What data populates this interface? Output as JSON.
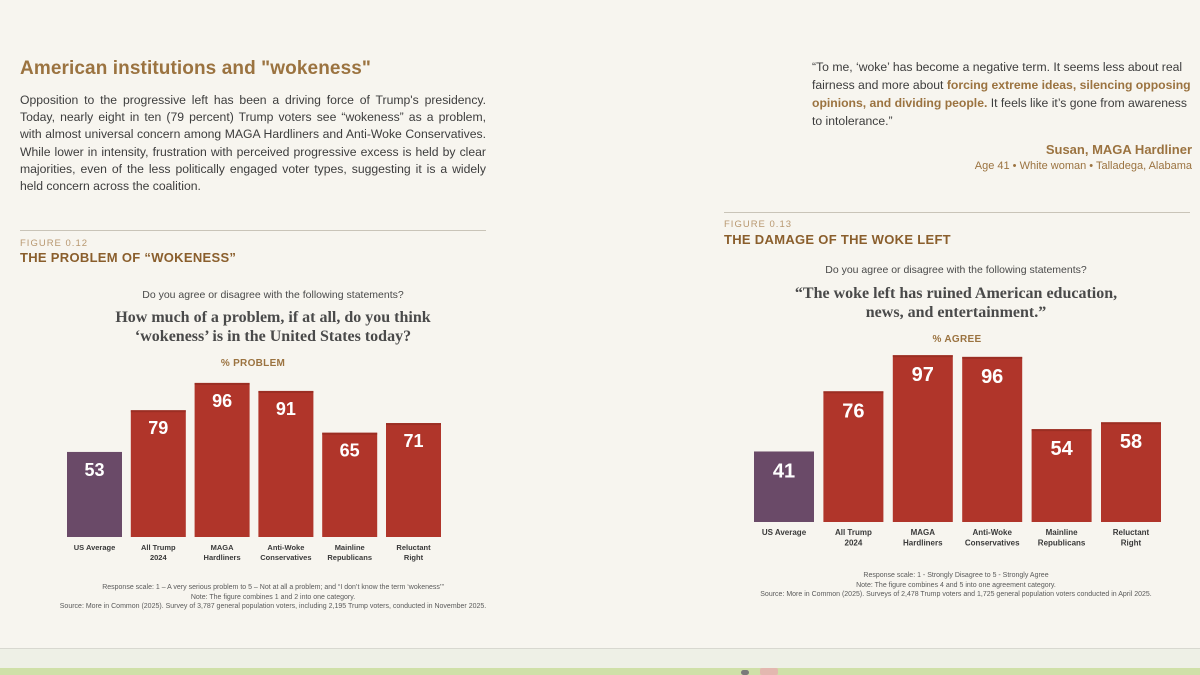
{
  "header": {
    "section_title": "American institutions and \"wokeness\"",
    "intro": "Opposition to the progressive left has been a driving force of Trump's presidency. Today, nearly eight in ten (79 percent) Trump voters see “wokeness” as a problem, with almost universal concern among MAGA Hardliners and Anti-Woke Conservatives. While lower in intensity, frustration with perceived progressive excess is held by clear majorities, even of the less politically engaged voter types, suggesting it is a widely held concern across the coalition."
  },
  "quote": {
    "part1": "“To me, ‘woke’ has become a negative term. It seems less about real fairness and more about ",
    "highlight": "forcing extreme ideas, silencing opposing opinions, and dividing people.",
    "part2": " It feels like it’s gone from awareness to intolerance.”",
    "author": "Susan, MAGA Hardliner",
    "meta": "Age 41 • White woman • Talladega, Alabama"
  },
  "fig1": {
    "label": "FIGURE 0.12",
    "title": "THE PROBLEM OF “WOKENESS”",
    "question": "Do you agree or disagree with the following statements?",
    "statement_line1": "How much of a problem, if at all, do you think",
    "statement_line2": "‘wokeness’ is in the United States today?",
    "metric": "% PROBLEM",
    "note1": "Response scale: 1 – A very serious problem to 5 – Not at all a problem; and “I don’t know the term ‘wokeness’”",
    "note2": "Note: The figure combines 1 and 2 into one category.",
    "note3": "Source: More in Common (2025). Survey of 3,787 general population voters, including 2,195 Trump voters, conducted in November 2025."
  },
  "fig2": {
    "label": "FIGURE 0.13",
    "title": "THE DAMAGE OF THE WOKE LEFT",
    "question": "Do you agree or disagree with the following statements?",
    "statement_line1": "“The woke left has ruined American education,",
    "statement_line2": "news, and entertainment.”",
    "metric": "% AGREE",
    "note1": "Response scale: 1 - Strongly Disagree to 5 - Strongly Agree",
    "note2": "Note: The figure combines 4 and 5 into one agreement category.",
    "note3": "Source: More in Common (2025). Surveys of 2,478 Trump voters and 1,725 general population voters conducted in April 2025."
  },
  "colors": {
    "us_average": "#6a4a68",
    "trump_groups": "#b0352a",
    "accent": "#9b7340"
  },
  "chart_data": [
    {
      "type": "bar",
      "title": "THE PROBLEM OF “WOKENESS”",
      "categories": [
        [
          "US Average"
        ],
        [
          "All Trump",
          "2024"
        ],
        [
          "MAGA",
          "Hardliners"
        ],
        [
          "Anti-Woke",
          "Conservatives"
        ],
        [
          "Mainline",
          "Republicans"
        ],
        [
          "Reluctant",
          "Right"
        ]
      ],
      "values": [
        53,
        79,
        96,
        91,
        65,
        71
      ],
      "ylabel": "% PROBLEM",
      "ylim": [
        0,
        100
      ]
    },
    {
      "type": "bar",
      "title": "THE DAMAGE OF THE WOKE LEFT",
      "categories": [
        [
          "US Average"
        ],
        [
          "All Trump",
          "2024"
        ],
        [
          "MAGA",
          "Hardliners"
        ],
        [
          "Anti-Woke",
          "Conservatives"
        ],
        [
          "Mainline",
          "Republicans"
        ],
        [
          "Reluctant",
          "Right"
        ]
      ],
      "values": [
        41,
        76,
        97,
        96,
        54,
        58
      ],
      "ylabel": "% AGREE",
      "ylim": [
        0,
        100
      ]
    }
  ]
}
